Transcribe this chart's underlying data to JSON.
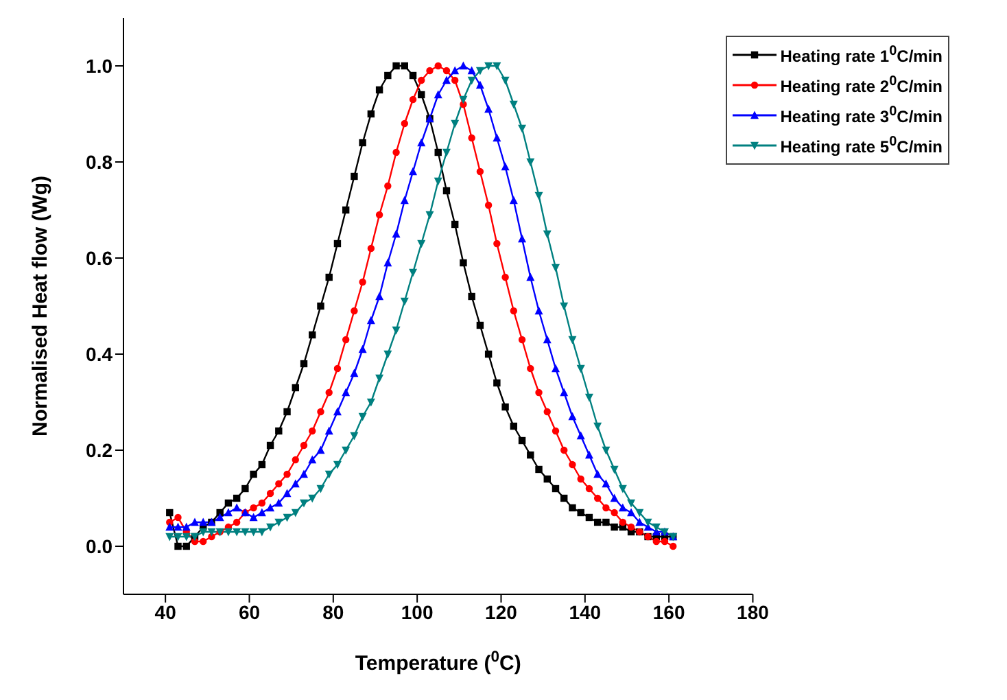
{
  "chart_data": {
    "type": "line",
    "xlabel": "Temperature ($^{0}$C)",
    "ylabel": "Normalised Heat flow (Wg)",
    "x": [
      41,
      43,
      45,
      47,
      49,
      51,
      53,
      55,
      57,
      59,
      61,
      63,
      65,
      67,
      69,
      71,
      73,
      75,
      77,
      79,
      81,
      83,
      85,
      87,
      89,
      91,
      93,
      95,
      97,
      99,
      101,
      103,
      105,
      107,
      109,
      111,
      113,
      115,
      117,
      119,
      121,
      123,
      125,
      127,
      129,
      131,
      133,
      135,
      137,
      139,
      141,
      143,
      145,
      147,
      149,
      151,
      153,
      155,
      157,
      159,
      161
    ],
    "series": [
      {
        "name": "Heating rate 1$^{0}$C/min",
        "color": "#000000",
        "marker": "square",
        "values": [
          0.07,
          0.0,
          0.0,
          0.02,
          0.04,
          0.05,
          0.07,
          0.09,
          0.1,
          0.12,
          0.15,
          0.17,
          0.21,
          0.24,
          0.28,
          0.33,
          0.38,
          0.44,
          0.5,
          0.56,
          0.63,
          0.7,
          0.77,
          0.84,
          0.9,
          0.95,
          0.98,
          1.0,
          1.0,
          0.98,
          0.94,
          0.89,
          0.82,
          0.74,
          0.67,
          0.59,
          0.52,
          0.46,
          0.4,
          0.34,
          0.29,
          0.25,
          0.22,
          0.19,
          0.16,
          0.14,
          0.12,
          0.1,
          0.08,
          0.07,
          0.06,
          0.05,
          0.05,
          0.04,
          0.04,
          0.03,
          0.03,
          0.02,
          0.02,
          0.02,
          0.02
        ]
      },
      {
        "name": "Heating rate 2$^{0}$C/min",
        "color": "#ff0000",
        "marker": "circle",
        "values": [
          0.05,
          0.06,
          0.03,
          0.01,
          0.01,
          0.02,
          0.03,
          0.04,
          0.05,
          0.07,
          0.08,
          0.09,
          0.11,
          0.13,
          0.15,
          0.18,
          0.21,
          0.24,
          0.28,
          0.32,
          0.37,
          0.43,
          0.49,
          0.55,
          0.62,
          0.69,
          0.75,
          0.82,
          0.88,
          0.93,
          0.97,
          0.99,
          1.0,
          0.99,
          0.97,
          0.92,
          0.85,
          0.78,
          0.71,
          0.63,
          0.56,
          0.49,
          0.43,
          0.37,
          0.32,
          0.28,
          0.24,
          0.2,
          0.17,
          0.14,
          0.12,
          0.1,
          0.08,
          0.07,
          0.05,
          0.04,
          0.03,
          0.02,
          0.01,
          0.01,
          0.0
        ]
      },
      {
        "name": "Heating rate 3$^{0}$C/min",
        "color": "#0000ff",
        "marker": "triangle",
        "values": [
          0.04,
          0.04,
          0.04,
          0.05,
          0.05,
          0.05,
          0.06,
          0.07,
          0.08,
          0.07,
          0.06,
          0.07,
          0.08,
          0.09,
          0.11,
          0.13,
          0.15,
          0.18,
          0.2,
          0.24,
          0.28,
          0.32,
          0.36,
          0.41,
          0.47,
          0.52,
          0.59,
          0.65,
          0.72,
          0.78,
          0.84,
          0.89,
          0.94,
          0.97,
          0.99,
          1.0,
          0.99,
          0.96,
          0.91,
          0.85,
          0.79,
          0.72,
          0.64,
          0.56,
          0.49,
          0.43,
          0.37,
          0.32,
          0.27,
          0.23,
          0.19,
          0.15,
          0.13,
          0.1,
          0.08,
          0.07,
          0.05,
          0.04,
          0.03,
          0.03,
          0.02
        ]
      },
      {
        "name": "Heating rate 5$^{0}$C/min",
        "color": "#008080",
        "marker": "triangle-down",
        "values": [
          0.02,
          0.02,
          0.02,
          0.02,
          0.03,
          0.03,
          0.03,
          0.03,
          0.03,
          0.03,
          0.03,
          0.03,
          0.04,
          0.05,
          0.06,
          0.07,
          0.09,
          0.1,
          0.12,
          0.15,
          0.17,
          0.2,
          0.23,
          0.27,
          0.3,
          0.35,
          0.4,
          0.45,
          0.51,
          0.57,
          0.63,
          0.69,
          0.76,
          0.82,
          0.88,
          0.93,
          0.97,
          0.99,
          1.0,
          1.0,
          0.97,
          0.92,
          0.87,
          0.8,
          0.73,
          0.65,
          0.58,
          0.5,
          0.43,
          0.37,
          0.31,
          0.25,
          0.2,
          0.16,
          0.12,
          0.09,
          0.07,
          0.05,
          0.04,
          0.03,
          0.02
        ]
      }
    ],
    "xlim": [
      30,
      180
    ],
    "xticks": [
      40,
      60,
      80,
      100,
      120,
      140,
      160,
      180
    ],
    "ylim": [
      -0.1,
      1.1
    ],
    "yticks": [
      {
        "value": 0,
        "label": "0.0"
      },
      0.2,
      0.4,
      0.6,
      0.8,
      {
        "value": 1,
        "label": "1.0"
      }
    ],
    "grid": false,
    "legend": "top right",
    "line_style": "solid"
  }
}
